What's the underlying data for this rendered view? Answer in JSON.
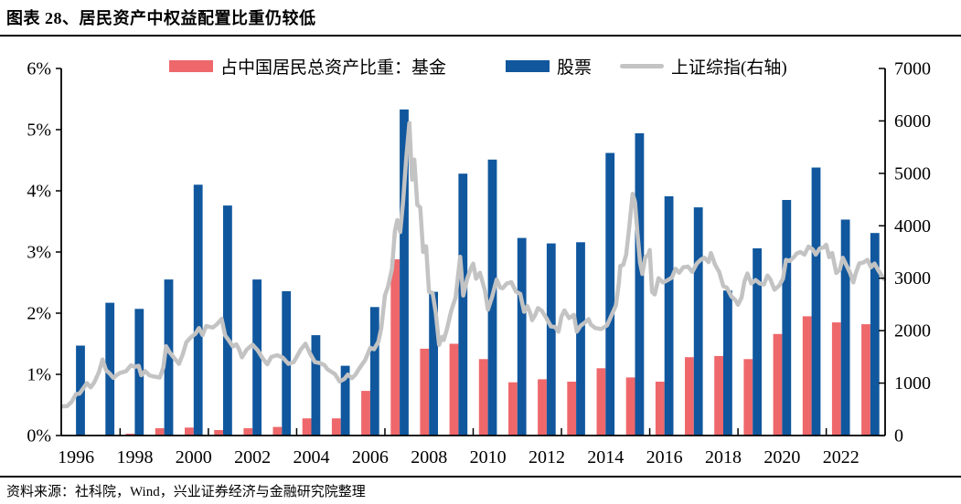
{
  "header": {
    "title": "图表 28、居民资产中权益配置比重仍较低"
  },
  "footer": {
    "source": "资料来源：社科院，Wind，兴业证券经济与金融研究院整理"
  },
  "colors": {
    "fund_bar": "#ee686b",
    "stock_bar": "#10579e",
    "index_line": "#c3c3c3",
    "axis": "#000000",
    "background": "#ffffff"
  },
  "chart_data": {
    "type": "bar+line",
    "title": "图表 28、居民资产中权益配置比重仍较低",
    "categories": [
      1996,
      1997,
      1998,
      1999,
      2000,
      2001,
      2002,
      2003,
      2004,
      2005,
      2006,
      2007,
      2008,
      2009,
      2010,
      2011,
      2012,
      2013,
      2014,
      2015,
      2016,
      2017,
      2018,
      2019,
      2020,
      2021,
      2022,
      2023
    ],
    "series": [
      {
        "name": "占中国居民总资产比重：基金",
        "type": "bar",
        "axis": "left",
        "unit": "%",
        "color_key": "fund_bar",
        "values": [
          0.0,
          0.01,
          0.03,
          0.12,
          0.13,
          0.09,
          0.12,
          0.14,
          0.28,
          0.28,
          0.73,
          2.88,
          1.42,
          1.5,
          1.25,
          0.87,
          0.92,
          0.88,
          1.1,
          0.95,
          0.88,
          1.28,
          1.3,
          1.25,
          1.66,
          1.95,
          1.85,
          1.82
        ]
      },
      {
        "name": "股票",
        "type": "bar",
        "axis": "left",
        "unit": "%",
        "color_key": "stock_bar",
        "values": [
          1.47,
          2.17,
          2.07,
          2.55,
          4.1,
          3.76,
          2.55,
          2.36,
          1.64,
          1.14,
          2.1,
          5.33,
          2.35,
          4.28,
          4.51,
          3.23,
          3.14,
          3.16,
          4.62,
          4.94,
          3.91,
          3.73,
          2.37,
          3.06,
          3.85,
          4.38,
          3.53,
          3.31
        ]
      },
      {
        "name": "上证综指(右轴)",
        "type": "line",
        "axis": "right",
        "color_key": "index_line",
        "points": [
          [
            1996.04,
            555
          ],
          [
            1996.2,
            560
          ],
          [
            1996.35,
            640
          ],
          [
            1996.5,
            790
          ],
          [
            1996.62,
            800
          ],
          [
            1996.75,
            900
          ],
          [
            1996.87,
            1000
          ],
          [
            1997.0,
            917
          ],
          [
            1997.12,
            1010
          ],
          [
            1997.28,
            1210
          ],
          [
            1997.4,
            1450
          ],
          [
            1997.52,
            1250
          ],
          [
            1997.65,
            1180
          ],
          [
            1997.77,
            1098
          ],
          [
            1997.9,
            1160
          ],
          [
            1998.0,
            1194
          ],
          [
            1998.2,
            1225
          ],
          [
            1998.37,
            1340
          ],
          [
            1998.5,
            1310
          ],
          [
            1998.63,
            1330
          ],
          [
            1998.72,
            1150
          ],
          [
            1998.85,
            1230
          ],
          [
            1999.0,
            1147
          ],
          [
            1999.15,
            1125
          ],
          [
            1999.35,
            1105
          ],
          [
            1999.47,
            1300
          ],
          [
            1999.56,
            1705
          ],
          [
            1999.68,
            1590
          ],
          [
            1999.82,
            1490
          ],
          [
            2000.0,
            1367
          ],
          [
            2000.12,
            1535
          ],
          [
            2000.25,
            1780
          ],
          [
            2000.42,
            1880
          ],
          [
            2000.56,
            1940
          ],
          [
            2000.68,
            2050
          ],
          [
            2000.8,
            1915
          ],
          [
            2000.93,
            2090
          ],
          [
            2001.04,
            2073
          ],
          [
            2001.15,
            2060
          ],
          [
            2001.28,
            2115
          ],
          [
            2001.45,
            2225
          ],
          [
            2001.57,
            1910
          ],
          [
            2001.7,
            1810
          ],
          [
            2001.83,
            1700
          ],
          [
            2001.95,
            1740
          ],
          [
            2002.04,
            1646
          ],
          [
            2002.14,
            1491
          ],
          [
            2002.3,
            1635
          ],
          [
            2002.5,
            1732
          ],
          [
            2002.68,
            1622
          ],
          [
            2002.85,
            1470
          ],
          [
            2003.0,
            1358
          ],
          [
            2003.14,
            1500
          ],
          [
            2003.34,
            1532
          ],
          [
            2003.53,
            1485
          ],
          [
            2003.72,
            1367
          ],
          [
            2003.9,
            1400
          ],
          [
            2004.0,
            1497
          ],
          [
            2004.14,
            1640
          ],
          [
            2004.3,
            1752
          ],
          [
            2004.46,
            1560
          ],
          [
            2004.62,
            1400
          ],
          [
            2004.8,
            1380
          ],
          [
            2004.95,
            1340
          ],
          [
            2005.04,
            1266
          ],
          [
            2005.16,
            1220
          ],
          [
            2005.3,
            1172
          ],
          [
            2005.46,
            1030
          ],
          [
            2005.62,
            1080
          ],
          [
            2005.74,
            1162
          ],
          [
            2005.88,
            1095
          ],
          [
            2006.0,
            1161
          ],
          [
            2006.15,
            1295
          ],
          [
            2006.33,
            1440
          ],
          [
            2006.5,
            1672
          ],
          [
            2006.63,
            1645
          ],
          [
            2006.78,
            1790
          ],
          [
            2006.88,
            2060
          ],
          [
            2007.0,
            2675
          ],
          [
            2007.1,
            2830
          ],
          [
            2007.24,
            3180
          ],
          [
            2007.34,
            3900
          ],
          [
            2007.42,
            4110
          ],
          [
            2007.52,
            3880
          ],
          [
            2007.62,
            4470
          ],
          [
            2007.72,
            5250
          ],
          [
            2007.83,
            5960
          ],
          [
            2007.92,
            4880
          ],
          [
            2008.0,
            5262
          ],
          [
            2008.1,
            4400
          ],
          [
            2008.2,
            4350
          ],
          [
            2008.3,
            3500
          ],
          [
            2008.4,
            3610
          ],
          [
            2008.5,
            2740
          ],
          [
            2008.62,
            2720
          ],
          [
            2008.73,
            2340
          ],
          [
            2008.84,
            1729
          ],
          [
            2008.94,
            1880
          ],
          [
            2009.0,
            1821
          ],
          [
            2009.1,
            2010
          ],
          [
            2009.25,
            2373
          ],
          [
            2009.4,
            2630
          ],
          [
            2009.56,
            3410
          ],
          [
            2009.66,
            2670
          ],
          [
            2009.8,
            2995
          ],
          [
            2009.93,
            3200
          ],
          [
            2010.0,
            3277
          ],
          [
            2010.1,
            2990
          ],
          [
            2010.23,
            3105
          ],
          [
            2010.4,
            2760
          ],
          [
            2010.5,
            2400
          ],
          [
            2010.64,
            2640
          ],
          [
            2010.8,
            2975
          ],
          [
            2010.92,
            2820
          ],
          [
            2011.0,
            2808
          ],
          [
            2011.14,
            2900
          ],
          [
            2011.3,
            2925
          ],
          [
            2011.45,
            2745
          ],
          [
            2011.6,
            2700
          ],
          [
            2011.73,
            2360
          ],
          [
            2011.84,
            2470
          ],
          [
            2011.94,
            2333
          ],
          [
            2012.0,
            2199
          ],
          [
            2012.1,
            2290
          ],
          [
            2012.2,
            2430
          ],
          [
            2012.33,
            2380
          ],
          [
            2012.5,
            2228
          ],
          [
            2012.64,
            2080
          ],
          [
            2012.78,
            2070
          ],
          [
            2012.9,
            1980
          ],
          [
            2013.0,
            2269
          ],
          [
            2013.1,
            2385
          ],
          [
            2013.26,
            2240
          ],
          [
            2013.42,
            2300
          ],
          [
            2013.52,
            1980
          ],
          [
            2013.65,
            2095
          ],
          [
            2013.8,
            2155
          ],
          [
            2013.92,
            2220
          ],
          [
            2014.0,
            2116
          ],
          [
            2014.15,
            2050
          ],
          [
            2014.35,
            2030
          ],
          [
            2014.55,
            2100
          ],
          [
            2014.7,
            2290
          ],
          [
            2014.85,
            2480
          ],
          [
            2014.95,
            2910
          ],
          [
            2015.0,
            3235
          ],
          [
            2015.1,
            3255
          ],
          [
            2015.2,
            3450
          ],
          [
            2015.3,
            3950
          ],
          [
            2015.42,
            4610
          ],
          [
            2015.5,
            4450
          ],
          [
            2015.58,
            3870
          ],
          [
            2015.67,
            3300
          ],
          [
            2015.75,
            3080
          ],
          [
            2015.85,
            3400
          ],
          [
            2015.95,
            3445
          ],
          [
            2016.0,
            3539
          ],
          [
            2016.08,
            2740
          ],
          [
            2016.17,
            2690
          ],
          [
            2016.3,
            3000
          ],
          [
            2016.45,
            2920
          ],
          [
            2016.6,
            2960
          ],
          [
            2016.75,
            3010
          ],
          [
            2016.88,
            3180
          ],
          [
            2017.0,
            3104
          ],
          [
            2017.14,
            3210
          ],
          [
            2017.3,
            3222
          ],
          [
            2017.45,
            3120
          ],
          [
            2017.6,
            3280
          ],
          [
            2017.74,
            3355
          ],
          [
            2017.86,
            3390
          ],
          [
            2018.0,
            3307
          ],
          [
            2018.08,
            3480
          ],
          [
            2018.22,
            3260
          ],
          [
            2018.36,
            3120
          ],
          [
            2018.5,
            2850
          ],
          [
            2018.62,
            2820
          ],
          [
            2018.78,
            2650
          ],
          [
            2018.9,
            2590
          ],
          [
            2019.0,
            2494
          ],
          [
            2019.12,
            2630
          ],
          [
            2019.22,
            2940
          ],
          [
            2019.32,
            3090
          ],
          [
            2019.45,
            2900
          ],
          [
            2019.6,
            2965
          ],
          [
            2019.74,
            2900
          ],
          [
            2019.88,
            2880
          ],
          [
            2020.0,
            3050
          ],
          [
            2020.1,
            2980
          ],
          [
            2020.24,
            2780
          ],
          [
            2020.4,
            2860
          ],
          [
            2020.53,
            2990
          ],
          [
            2020.63,
            3350
          ],
          [
            2020.75,
            3330
          ],
          [
            2020.88,
            3390
          ],
          [
            2021.0,
            3473
          ],
          [
            2021.12,
            3500
          ],
          [
            2021.26,
            3450
          ],
          [
            2021.4,
            3605
          ],
          [
            2021.54,
            3550
          ],
          [
            2021.64,
            3450
          ],
          [
            2021.78,
            3570
          ],
          [
            2021.92,
            3590
          ],
          [
            2022.0,
            3640
          ],
          [
            2022.1,
            3400
          ],
          [
            2022.2,
            3480
          ],
          [
            2022.34,
            3100
          ],
          [
            2022.46,
            3160
          ],
          [
            2022.56,
            3390
          ],
          [
            2022.7,
            3230
          ],
          [
            2022.82,
            3090
          ],
          [
            2022.92,
            2920
          ],
          [
            2023.0,
            3089
          ],
          [
            2023.12,
            3280
          ],
          [
            2023.26,
            3300
          ],
          [
            2023.4,
            3350
          ],
          [
            2023.52,
            3210
          ],
          [
            2023.64,
            3280
          ],
          [
            2023.78,
            3140
          ],
          [
            2023.88,
            3060
          ],
          [
            2023.97,
            2980
          ]
        ]
      }
    ],
    "left_axis": {
      "min": 0,
      "max": 6,
      "step": 1,
      "tick_labels": [
        "0%",
        "1%",
        "2%",
        "3%",
        "4%",
        "5%",
        "6%"
      ]
    },
    "right_axis": {
      "min": 0,
      "max": 7000,
      "step": 1000,
      "tick_labels": [
        "0",
        "1000",
        "2000",
        "3000",
        "4000",
        "5000",
        "6000",
        "7000"
      ]
    },
    "x_axis": {
      "labels": [
        1996,
        1998,
        2000,
        2002,
        2004,
        2006,
        2008,
        2010,
        2012,
        2014,
        2016,
        2018,
        2020,
        2022
      ],
      "tick_boundary_years": [
        1998,
        2001,
        2004,
        2007,
        2010,
        2013,
        2016,
        2019,
        2022
      ]
    },
    "legend": [
      {
        "label": "占中国居民总资产比重：基金",
        "swatch": "bar",
        "color_key": "fund_bar"
      },
      {
        "label": "股票",
        "swatch": "bar",
        "color_key": "stock_bar"
      },
      {
        "label": "上证综指(右轴)",
        "swatch": "line",
        "color_key": "index_line"
      }
    ],
    "grid": false,
    "legend_position": "top-center-inside"
  }
}
